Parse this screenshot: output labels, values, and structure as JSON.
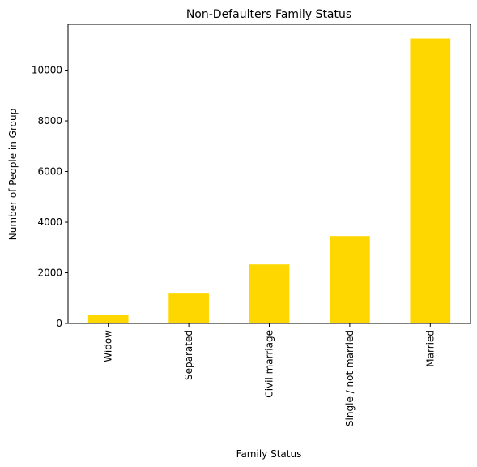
{
  "chart_data": {
    "type": "bar",
    "title": "Non-Defaulters Family Status",
    "xlabel": "Family Status",
    "ylabel": "Number of People in Group",
    "categories": [
      "Widow",
      "Separated",
      "Civil marriage",
      "Single / not married",
      "Married"
    ],
    "values": [
      320,
      1180,
      2330,
      3450,
      11250
    ],
    "ylim": [
      0,
      11810
    ],
    "yticks": [
      0,
      2000,
      4000,
      6000,
      8000,
      10000
    ],
    "ytick_labels": [
      "0",
      "2000",
      "4000",
      "6000",
      "8000",
      "10000"
    ],
    "grid": false,
    "legend": "none",
    "bar_color": "#FFD700"
  }
}
